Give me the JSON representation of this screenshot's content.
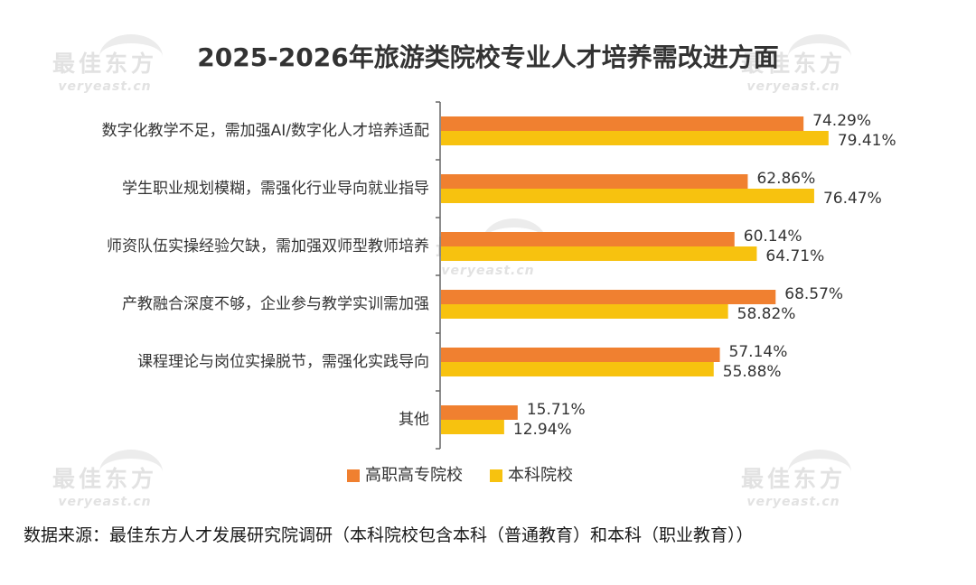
{
  "watermark": {
    "brand": "最佳东方",
    "site": "veryeast.cn"
  },
  "chart_data": {
    "type": "bar",
    "orientation": "horizontal",
    "title": "2025-2026年旅游类院校专业人才培养需改进方面",
    "categories": [
      "数字化教学不足，需加强AI/数字化人才培养适配",
      "学生职业规划模糊，需强化行业导向就业指导",
      "师资队伍实操经验欠缺，需加强双师型教师培养",
      "产教融合深度不够，企业参与教学实训需加强",
      "课程理论与岗位实操脱节，需强化实践导向",
      "其他"
    ],
    "series": [
      {
        "name": "高职高专院校",
        "color": "#F08030",
        "values": [
          74.29,
          62.86,
          60.14,
          68.57,
          57.14,
          15.71
        ],
        "labels": [
          "74.29%",
          "62.86%",
          "60.14%",
          "68.57%",
          "57.14%",
          "15.71%"
        ]
      },
      {
        "name": "本科院校",
        "color": "#F7C20F",
        "values": [
          79.41,
          76.47,
          64.71,
          58.82,
          55.88,
          12.94
        ],
        "labels": [
          "79.41%",
          "76.47%",
          "64.71%",
          "58.82%",
          "55.88%",
          "12.94%"
        ]
      }
    ],
    "xlim": [
      0,
      100
    ],
    "grid": false,
    "legend_position": "bottom"
  },
  "source": "数据来源：最佳东方人才发展研究院调研（本科院校包含本科（普通教育）和本科（职业教育））"
}
